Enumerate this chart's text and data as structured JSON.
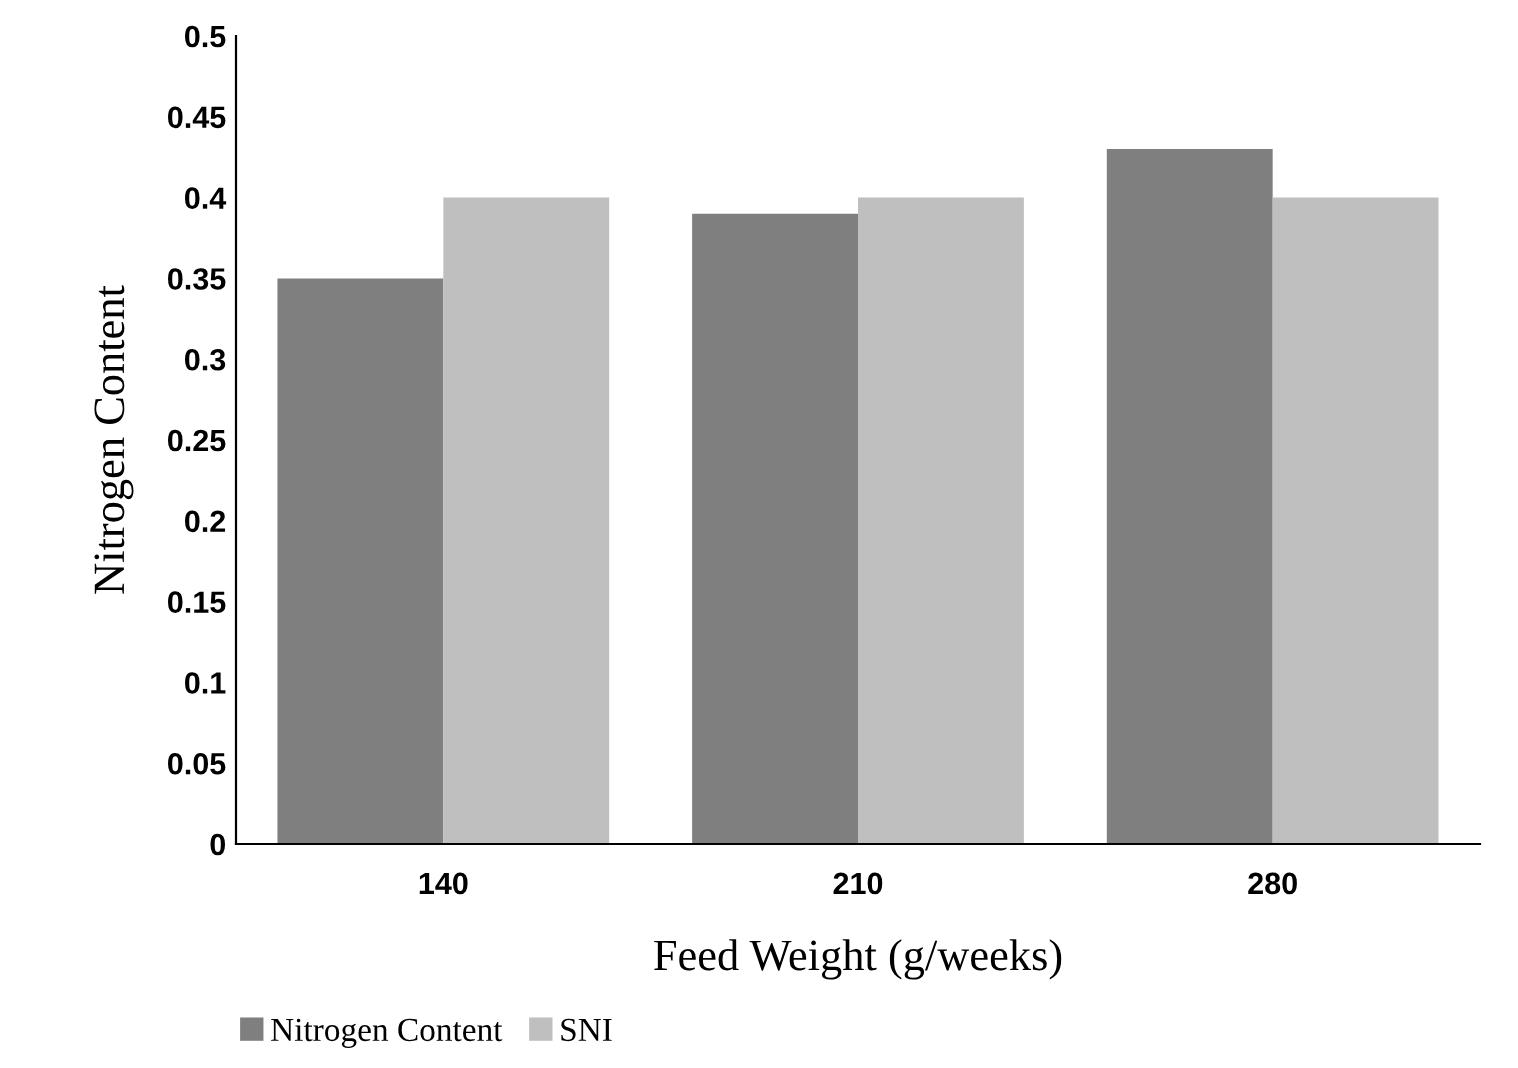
{
  "chart_data": {
    "type": "bar",
    "xlabel": "Feed Weight (g/weeks)",
    "ylabel": "Nitrogen Content",
    "categories": [
      "140",
      "210",
      "280"
    ],
    "series": [
      {
        "name": "Nitrogen Content",
        "color": "#7f7f7f",
        "values": [
          0.35,
          0.39,
          0.43
        ]
      },
      {
        "name": "SNI",
        "color": "#bfbfbf",
        "values": [
          0.4,
          0.4,
          0.4
        ]
      }
    ],
    "ylim": [
      0,
      0.5
    ],
    "yticks": [
      0,
      0.05,
      0.1,
      0.15,
      0.2,
      0.25,
      0.3,
      0.35,
      0.4,
      0.45,
      0.5
    ],
    "grid": false,
    "legend": "bottom left"
  }
}
